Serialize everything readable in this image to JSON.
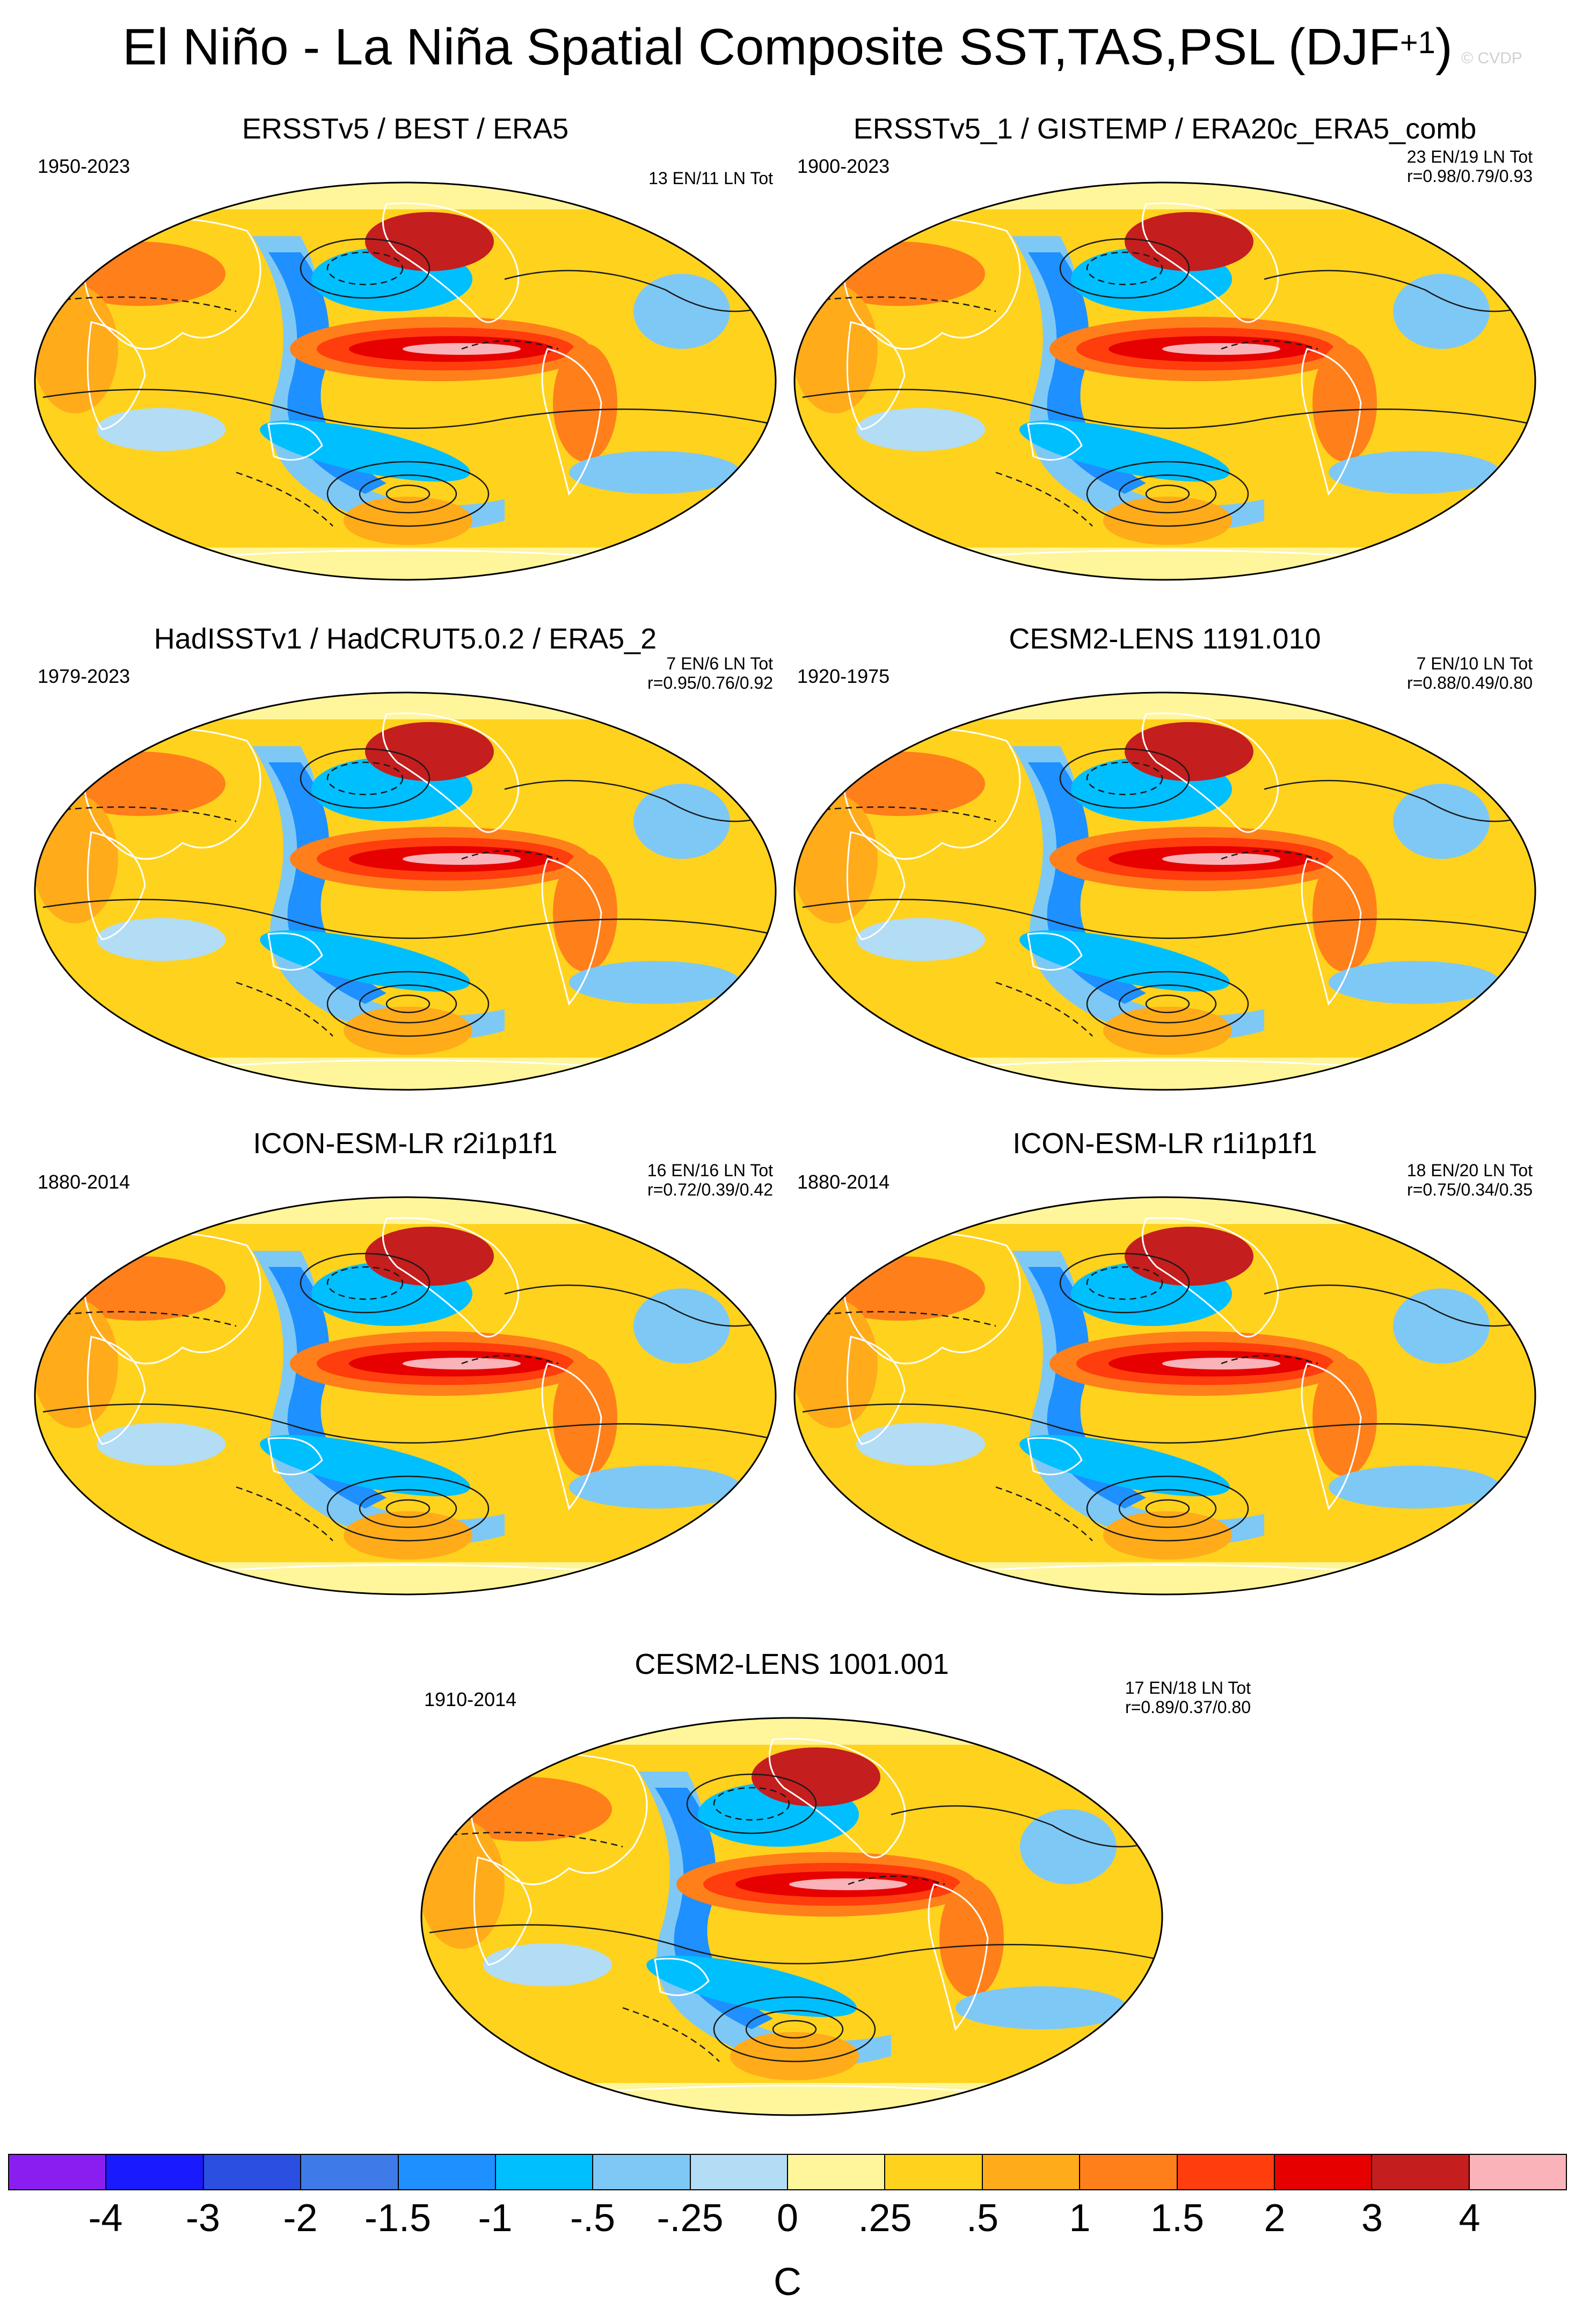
{
  "title": {
    "main": "El Niño - La Niña Spatial Composite SST,TAS,PSL (DJF",
    "superscript": "+1",
    "close": ")"
  },
  "watermark": "© CVDP",
  "colors": {
    "ocean_warm": "#f7a51f",
    "ocean_cool": "#1e9bf0",
    "contour": "#1a1a1a",
    "land_outline": "#ffffff"
  },
  "panels": [
    {
      "title": "ERSSTv5 / BEST / ERA5",
      "years": "1950-2023",
      "stats_line1": "13 EN/11 LN Tot",
      "stats_line2": ""
    },
    {
      "title": "ERSSTv5_1 / GISTEMP / ERA20c_ERA5_comb",
      "years": "1900-2023",
      "stats_line1": "23 EN/19 LN Tot",
      "stats_line2": "r=0.98/0.79/0.93"
    },
    {
      "title": "HadISSTv1 / HadCRUT5.0.2 / ERA5_2",
      "years": "1979-2023",
      "stats_line1": "7 EN/6 LN Tot",
      "stats_line2": "r=0.95/0.76/0.92"
    },
    {
      "title": "CESM2-LENS 1191.010",
      "years": "1920-1975",
      "stats_line1": "7 EN/10 LN Tot",
      "stats_line2": "r=0.88/0.49/0.80"
    },
    {
      "title": "ICON-ESM-LR r2i1p1f1",
      "years": "1880-2014",
      "stats_line1": "16 EN/16 LN Tot",
      "stats_line2": "r=0.72/0.39/0.42"
    },
    {
      "title": "ICON-ESM-LR r1i1p1f1",
      "years": "1880-2014",
      "stats_line1": "18 EN/20 LN Tot",
      "stats_line2": "r=0.75/0.34/0.35"
    },
    {
      "title": "CESM2-LENS 1001.001",
      "years": "1910-2014",
      "stats_line1": "17 EN/18 LN Tot",
      "stats_line2": "r=0.89/0.37/0.80"
    }
  ],
  "colorbar": {
    "colors": [
      "#8a1ef0",
      "#1a1aff",
      "#2b4fe0",
      "#3f7be8",
      "#1e90ff",
      "#00bfff",
      "#7ec8f5",
      "#b3dcf5",
      "#fff59a",
      "#ffd21e",
      "#ffab1a",
      "#ff7f1a",
      "#ff3d0d",
      "#e60000",
      "#c41e1e",
      "#f9b3b9"
    ],
    "labels": [
      "-4",
      "-3",
      "-2",
      "-1.5",
      "-1",
      "-.5",
      "-.25",
      "0",
      ".25",
      ".5",
      "1",
      "1.5",
      "2",
      "3",
      "4"
    ],
    "units": "C"
  }
}
